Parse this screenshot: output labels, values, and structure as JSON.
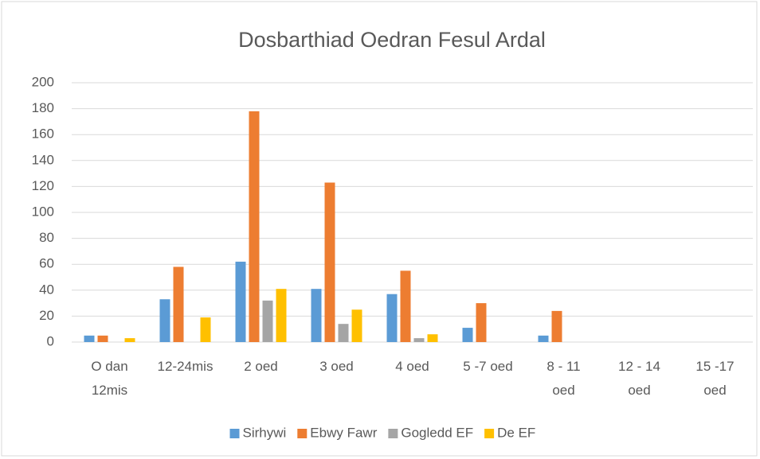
{
  "chart_data": {
    "type": "bar",
    "title": "Dosbarthiad Oedran Fesul Ardal",
    "categories": [
      "O dan\n12mis",
      "12-24mis",
      "2 oed",
      "3 oed",
      "4 oed",
      "5 -7 oed",
      "8 - 11\noed",
      "12 - 14\noed",
      "15 -17\noed"
    ],
    "series": [
      {
        "name": "Sirhywi",
        "color": "#5b9bd5",
        "values": [
          5,
          33,
          62,
          41,
          37,
          11,
          5,
          0,
          0
        ]
      },
      {
        "name": "Ebwy Fawr",
        "color": "#ed7d31",
        "values": [
          5,
          58,
          178,
          123,
          55,
          30,
          24,
          0,
          0
        ]
      },
      {
        "name": "Gogledd EF",
        "color": "#a5a5a5",
        "values": [
          0,
          0,
          32,
          14,
          3,
          0,
          0,
          0,
          0
        ]
      },
      {
        "name": "De EF",
        "color": "#ffc000",
        "values": [
          3,
          19,
          41,
          25,
          6,
          0,
          0,
          0,
          0
        ]
      }
    ],
    "ylim": [
      0,
      200
    ],
    "yticks": [
      0,
      20,
      40,
      60,
      80,
      100,
      120,
      140,
      160,
      180,
      200
    ],
    "grid": true,
    "legend": "bottom"
  }
}
